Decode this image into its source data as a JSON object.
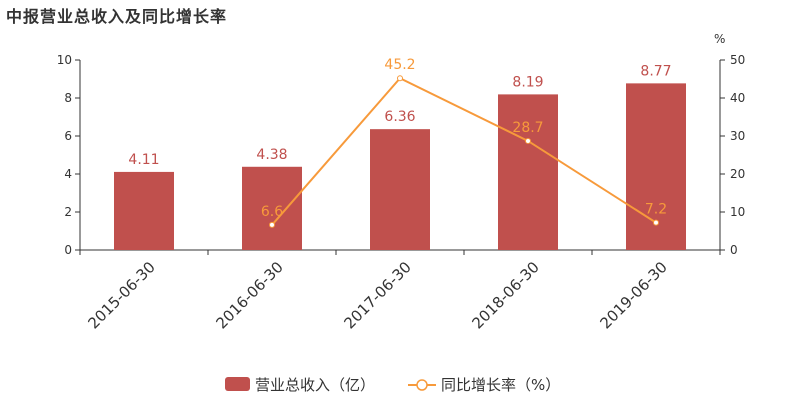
{
  "title": "中报营业总收入及同比增长率",
  "chart_data": {
    "type": "bar",
    "categories": [
      "2015-06-30",
      "2016-06-30",
      "2017-06-30",
      "2018-06-30",
      "2019-06-30"
    ],
    "series": [
      {
        "name": "营业总收入（亿）",
        "type": "bar",
        "axis": "left",
        "color": "#c0504d",
        "values": [
          4.11,
          4.38,
          6.36,
          8.19,
          8.77
        ]
      },
      {
        "name": "同比增长率（%）",
        "type": "line",
        "axis": "right",
        "color": "#f79a3b",
        "values": [
          null,
          6.6,
          45.2,
          28.7,
          7.2
        ]
      }
    ],
    "y_left": {
      "range": [
        0,
        10
      ],
      "ticks": [
        "0",
        "2",
        "4",
        "6",
        "8",
        "10"
      ]
    },
    "y_right": {
      "range": [
        0,
        50
      ],
      "ticks": [
        "0",
        "10",
        "20",
        "30",
        "40",
        "50"
      ],
      "unit": "%"
    },
    "grid": false,
    "legend": "bottom-center"
  }
}
